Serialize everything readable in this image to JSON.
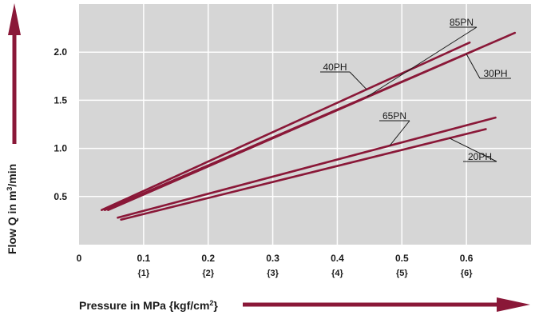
{
  "chart_data": {
    "type": "line",
    "xlabel": "Pressure in MPa {kgf/cm",
    "xlabel_sup": "2",
    "xlabel_end": "}",
    "ylabel": "Flow Q in m",
    "ylabel_sup": "3",
    "ylabel_end": "/min",
    "xlim": [
      0,
      0.7
    ],
    "ylim": [
      0,
      2.5
    ],
    "grid": true,
    "x_ticks": [
      {
        "value": 0,
        "label": "0",
        "sub": ""
      },
      {
        "value": 0.1,
        "label": "0.1",
        "sub": "{1}"
      },
      {
        "value": 0.2,
        "label": "0.2",
        "sub": "{2}"
      },
      {
        "value": 0.3,
        "label": "0.3",
        "sub": "{3}"
      },
      {
        "value": 0.4,
        "label": "0.4",
        "sub": "{4}"
      },
      {
        "value": 0.5,
        "label": "0.5",
        "sub": "{5}"
      },
      {
        "value": 0.6,
        "label": "0.6",
        "sub": "{6}"
      }
    ],
    "y_ticks": [
      {
        "value": 0.5,
        "label": "0.5"
      },
      {
        "value": 1.0,
        "label": "1.0"
      },
      {
        "value": 1.5,
        "label": "1.5"
      },
      {
        "value": 2.0,
        "label": "2.0"
      }
    ],
    "series": [
      {
        "name": "85PN",
        "points": [
          [
            0.04,
            0.36
          ],
          [
            0.675,
            2.2
          ]
        ]
      },
      {
        "name": "40PH",
        "points": [
          [
            0.035,
            0.36
          ],
          [
            0.605,
            2.1
          ]
        ]
      },
      {
        "name": "30PH",
        "points": [
          [
            0.045,
            0.36
          ],
          [
            0.62,
            2.04
          ]
        ]
      },
      {
        "name": "65PN",
        "points": [
          [
            0.06,
            0.28
          ],
          [
            0.645,
            1.32
          ]
        ]
      },
      {
        "name": "20PH",
        "points": [
          [
            0.065,
            0.26
          ],
          [
            0.63,
            1.2
          ]
        ]
      }
    ],
    "annotations": [
      {
        "series": "85PN",
        "text": "85PN"
      },
      {
        "series": "40PH",
        "text": "40PH"
      },
      {
        "series": "30PH",
        "text": "30PH"
      },
      {
        "series": "65PN",
        "text": "65PN"
      },
      {
        "series": "20PH",
        "text": "20PH"
      }
    ],
    "colors": {
      "line": "#8a1838",
      "arrow": "#8a1838",
      "plot_bg": "#d6d6d6",
      "grid": "#ffffff"
    }
  }
}
